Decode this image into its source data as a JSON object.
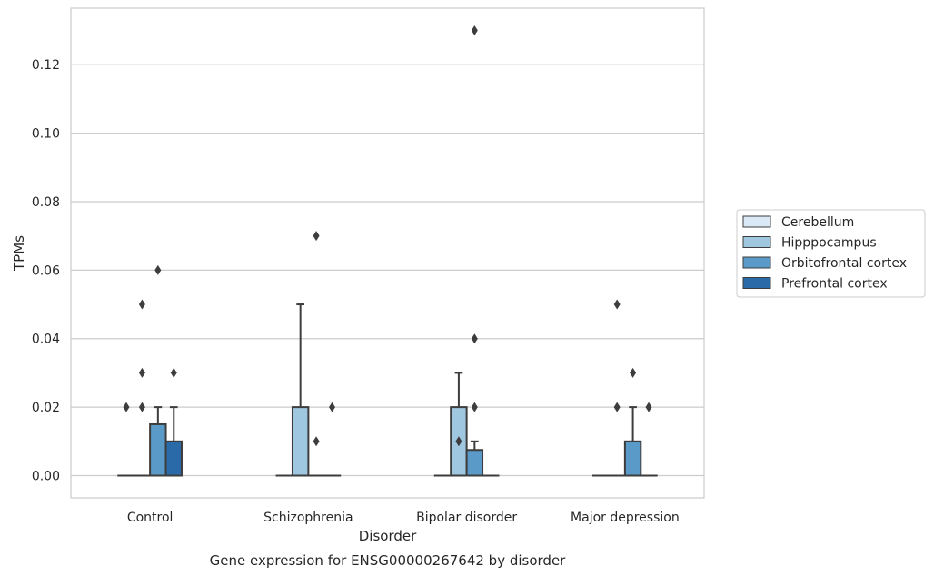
{
  "chart_data": {
    "type": "box",
    "caption": "Gene expression for ENSG00000267642 by disorder",
    "xlabel": "Disorder",
    "ylabel": "TPMs",
    "ylim": [
      -0.0065,
      0.1365
    ],
    "yticks": [
      "0.00",
      "0.02",
      "0.04",
      "0.06",
      "0.08",
      "0.10",
      "0.12"
    ],
    "grid": "horizontal",
    "legend_position": "right",
    "categories": [
      "Control",
      "Schizophrenia",
      "Bipolar disorder",
      "Major depression"
    ],
    "series": [
      {
        "name": "Cerebellum",
        "color": "#dbe8f5",
        "boxes": [
          {
            "min": 0,
            "q1": 0,
            "median": 0,
            "q3": 0,
            "max": 0,
            "outliers": [
              0.02
            ]
          },
          {
            "min": 0,
            "q1": 0,
            "median": 0,
            "q3": 0,
            "max": 0,
            "outliers": []
          },
          {
            "min": 0,
            "q1": 0,
            "median": 0,
            "q3": 0,
            "max": 0,
            "outliers": []
          },
          {
            "min": 0,
            "q1": 0,
            "median": 0,
            "q3": 0,
            "max": 0,
            "outliers": []
          }
        ]
      },
      {
        "name": "Hipppocampus",
        "color": "#9fc7e0",
        "boxes": [
          {
            "min": 0,
            "q1": 0,
            "median": 0,
            "q3": 0,
            "max": 0,
            "outliers": [
              0.02,
              0.03,
              0.05
            ]
          },
          {
            "min": 0,
            "q1": 0,
            "median": 0,
            "q3": 0.02,
            "max": 0.05,
            "outliers": []
          },
          {
            "min": 0,
            "q1": 0,
            "median": 0,
            "q3": 0.02,
            "max": 0.03,
            "outliers": [
              0.01
            ]
          },
          {
            "min": 0,
            "q1": 0,
            "median": 0,
            "q3": 0,
            "max": 0,
            "outliers": [
              0.02,
              0.05
            ]
          }
        ]
      },
      {
        "name": "Orbitofrontal cortex",
        "color": "#5a9ac8",
        "boxes": [
          {
            "min": 0,
            "q1": 0,
            "median": 0,
            "q3": 0.015,
            "max": 0.02,
            "outliers": [
              0.06
            ]
          },
          {
            "min": 0,
            "q1": 0,
            "median": 0,
            "q3": 0,
            "max": 0,
            "outliers": [
              0.01,
              0.07
            ]
          },
          {
            "min": 0,
            "q1": 0,
            "median": 0,
            "q3": 0.0075,
            "max": 0.01,
            "outliers": [
              0.02,
              0.04,
              0.13
            ]
          },
          {
            "min": 0,
            "q1": 0,
            "median": 0,
            "q3": 0.01,
            "max": 0.02,
            "outliers": [
              0.03
            ]
          }
        ]
      },
      {
        "name": "Prefrontal cortex",
        "color": "#2a6aa8",
        "boxes": [
          {
            "min": 0,
            "q1": 0,
            "median": 0,
            "q3": 0.01,
            "max": 0.02,
            "outliers": [
              0.03
            ]
          },
          {
            "min": 0,
            "q1": 0,
            "median": 0,
            "q3": 0,
            "max": 0,
            "outliers": [
              0.02
            ]
          },
          {
            "min": 0,
            "q1": 0,
            "median": 0,
            "q3": 0,
            "max": 0,
            "outliers": []
          },
          {
            "min": 0,
            "q1": 0,
            "median": 0,
            "q3": 0,
            "max": 0,
            "outliers": [
              0.02
            ]
          }
        ]
      }
    ]
  }
}
